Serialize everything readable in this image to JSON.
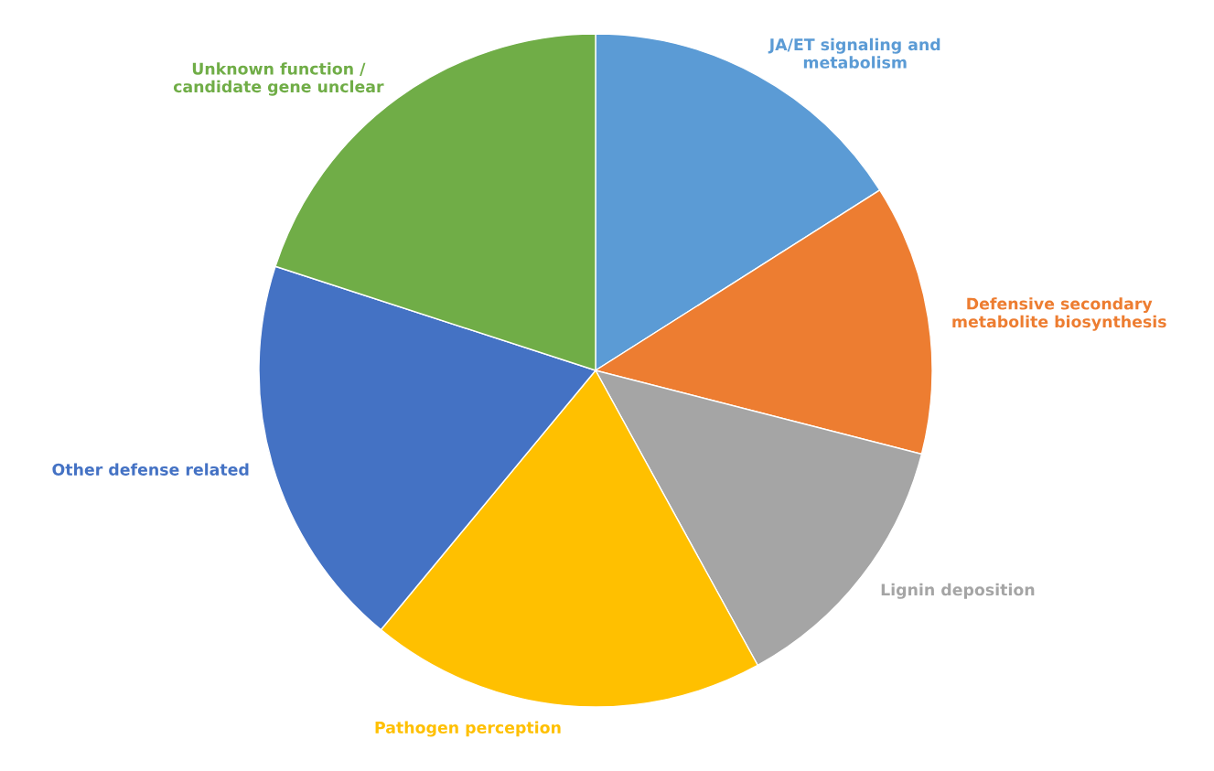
{
  "chart_data": {
    "type": "pie",
    "categories": [
      "JA/ET signaling and\nmetabolism",
      "Defensive secondary\nmetabolite biosynthesis",
      "Lignin deposition",
      "Pathogen perception",
      "Other defense related",
      "Unknown function /\ncandidate gene unclear"
    ],
    "values": [
      16,
      13,
      13,
      19,
      19,
      20
    ],
    "colors": [
      "#5b9bd5",
      "#ed7d31",
      "#a5a5a5",
      "#ffc000",
      "#4472c4",
      "#70ad47"
    ]
  }
}
